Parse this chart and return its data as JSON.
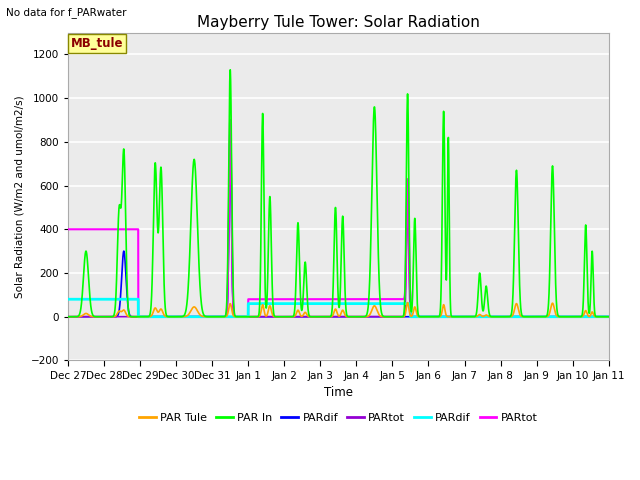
{
  "title": "Mayberry Tule Tower: Solar Radiation",
  "top_left_text": "No data for f_PARwater",
  "ylabel": "Solar Radiation (W/m2 and umol/m2/s)",
  "xlabel": "Time",
  "ylim": [
    -200,
    1300
  ],
  "yticks": [
    -200,
    0,
    200,
    400,
    600,
    800,
    1000,
    1200
  ],
  "legend_labels": [
    "PAR Tule",
    "PAR In",
    "PARdif",
    "PARtot",
    "PARdif",
    "PARtot"
  ],
  "legend_colors": [
    "#FFA500",
    "#00FF00",
    "#0000FF",
    "#9400D3",
    "#00FFFF",
    "#FF00FF"
  ],
  "box_label": "MB_tule",
  "box_color": "#8B0000",
  "box_bg": "#FFFF99",
  "fig_bg": "#FFFFFF",
  "plot_bg": "#EBEBEB",
  "grid_color": "#FFFFFF",
  "xtick_labels": [
    "Dec 27",
    "Dec 28",
    "Dec 29",
    "Dec 30",
    "Dec 31",
    "Jan 1",
    "Jan 2",
    "Jan 3",
    "Jan 4",
    "Jan 5",
    "Jan 6",
    "Jan 7",
    "Jan 8",
    "Jan 9",
    "Jan 10",
    "Jan 11"
  ]
}
